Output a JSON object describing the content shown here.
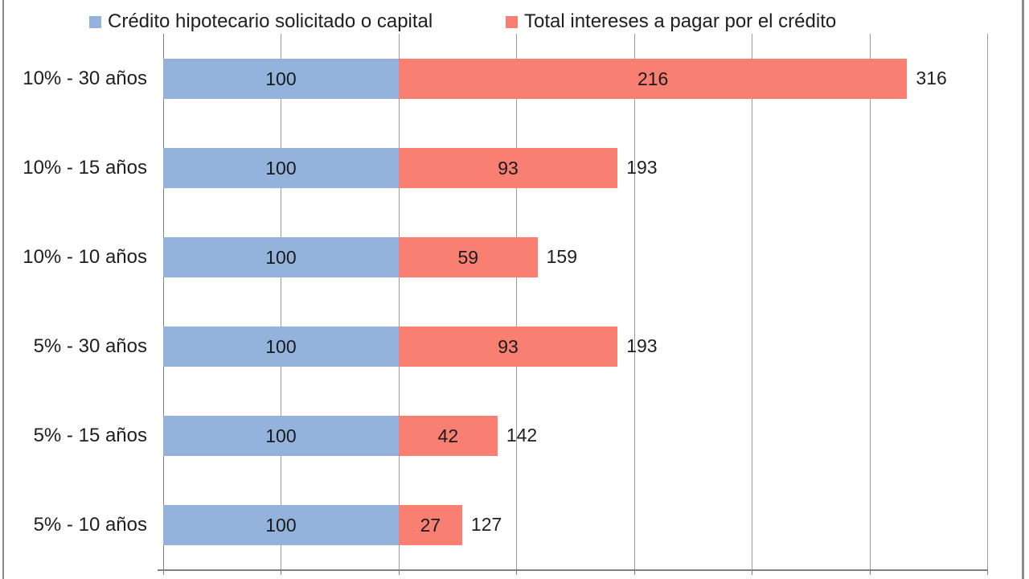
{
  "chart_data": {
    "type": "bar",
    "orientation": "horizontal_stacked",
    "title": "",
    "xlabel": "",
    "ylabel": "",
    "categories": [
      "10% - 30 años",
      "10% - 15 años",
      "10% - 10 años",
      "5% - 30 años",
      "5% - 15 años",
      "5% - 10 años"
    ],
    "series": [
      {
        "name": "Crédito hipotecario solicitado o capital",
        "color": "#93B3DC",
        "values": [
          100,
          100,
          100,
          100,
          100,
          100
        ]
      },
      {
        "name": "Total intereses a pagar por el crédito",
        "color": "#F97F72",
        "values": [
          216,
          93,
          59,
          93,
          42,
          27
        ]
      }
    ],
    "totals": [
      316,
      193,
      159,
      193,
      142,
      127
    ],
    "xlim": [
      0,
      350
    ],
    "grid_step": 50,
    "grid": true,
    "legend_position": "top",
    "bar_labels_visible": true,
    "x_tick_labels_visible": false
  },
  "colors": {
    "capital": "#93B3DC",
    "intereses": "#F97F72",
    "gridline": "#9c9c9c",
    "axis": "#808080",
    "text": "#1f1f1f",
    "background": "#ffffff",
    "frame_border": "#8a8a8a"
  }
}
